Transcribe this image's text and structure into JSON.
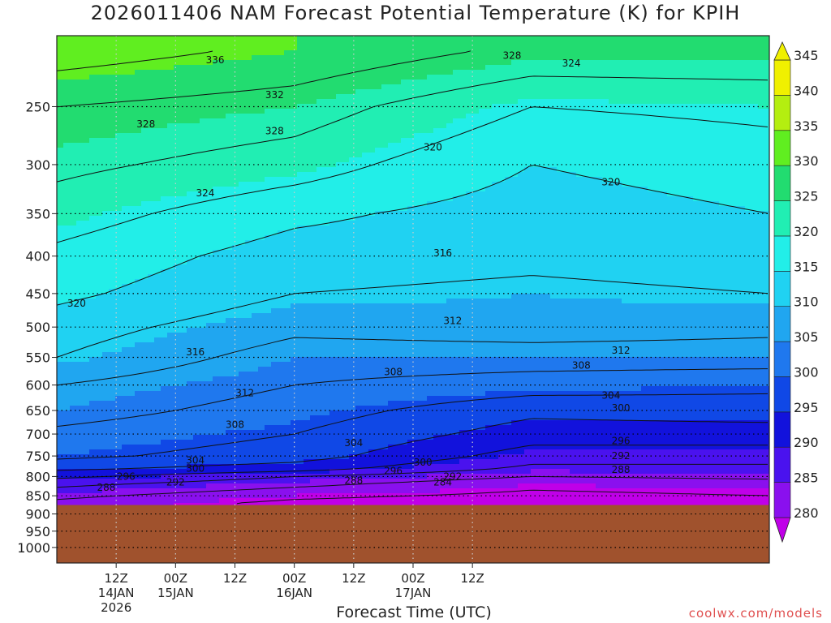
{
  "chart_data": {
    "type": "heatmap",
    "title": "2026011406 NAM Forecast Potential Temperature (K) for KPIH",
    "xlabel": "Forecast Time (UTC)",
    "ylabel": "",
    "credit": "coolwx.com/models",
    "y_scale": "log",
    "y_inverted": true,
    "ylim": [
      1050,
      200
    ],
    "y_ticks": [
      250,
      300,
      350,
      400,
      450,
      500,
      550,
      600,
      650,
      700,
      750,
      800,
      850,
      900,
      950,
      1000
    ],
    "xlim_hours": [
      6,
      78
    ],
    "x_ticks": [
      {
        "hour": 12,
        "lines": [
          "12Z",
          "14JAN",
          "2026"
        ]
      },
      {
        "hour": 18,
        "lines": [
          "00Z",
          "15JAN"
        ]
      },
      {
        "hour": 24,
        "lines": [
          "12Z"
        ]
      },
      {
        "hour": 30,
        "lines": [
          "00Z",
          "16JAN"
        ]
      },
      {
        "hour": 36,
        "lines": [
          "12Z"
        ]
      },
      {
        "hour": 42,
        "lines": [
          "00Z",
          "17JAN"
        ]
      },
      {
        "hour": 48,
        "lines": [
          "12Z"
        ]
      }
    ],
    "grid": true,
    "terrain_pressure": 875,
    "terrain_color": "#a0522d",
    "colorbar": {
      "levels": [
        280,
        285,
        290,
        295,
        300,
        305,
        310,
        315,
        320,
        325,
        330,
        335,
        340,
        345
      ],
      "colors": [
        "#c000e8",
        "#8a10ee",
        "#4a12ee",
        "#1212dc",
        "#1048e6",
        "#1f78ee",
        "#20a6f0",
        "#20d2f2",
        "#22eee8",
        "#21eeb3",
        "#22dc70",
        "#60ee20",
        "#b4ee10",
        "#f0f000"
      ]
    },
    "times": [
      6,
      30,
      54,
      78
    ],
    "pressures": [
      210,
      250,
      300,
      350,
      400,
      450,
      500,
      550,
      600,
      650,
      700,
      750,
      780,
      800,
      820,
      850,
      870
    ],
    "theta": [
      [
        338,
        335,
        331,
        331
      ],
      [
        332,
        330,
        324,
        325
      ],
      [
        329,
        326,
        320,
        322
      ],
      [
        326,
        321,
        318,
        320
      ],
      [
        323,
        318,
        317,
        318
      ],
      [
        321,
        316,
        315,
        316
      ],
      [
        318,
        313,
        314,
        313
      ],
      [
        316,
        310,
        310,
        310
      ],
      [
        312,
        308,
        306,
        305
      ],
      [
        310,
        306,
        301,
        302
      ],
      [
        307,
        304,
        298,
        298
      ],
      [
        305,
        302,
        294,
        294
      ],
      [
        301,
        298,
        291,
        291
      ],
      [
        297,
        292,
        288,
        289
      ],
      [
        293,
        289,
        285,
        286
      ],
      [
        289,
        285,
        283,
        284
      ],
      [
        287,
        283,
        281,
        282
      ]
    ],
    "contour_labels": [
      {
        "text": "336",
        "hour": 22,
        "p": 216
      },
      {
        "text": "332",
        "hour": 28,
        "p": 241
      },
      {
        "text": "328",
        "hour": 15,
        "p": 264
      },
      {
        "text": "328",
        "hour": 28,
        "p": 270
      },
      {
        "text": "328",
        "hour": 52,
        "p": 213
      },
      {
        "text": "324",
        "hour": 58,
        "p": 218
      },
      {
        "text": "324",
        "hour": 21,
        "p": 328
      },
      {
        "text": "320",
        "hour": 44,
        "p": 284
      },
      {
        "text": "320",
        "hour": 62,
        "p": 317
      },
      {
        "text": "320",
        "hour": 8,
        "p": 464
      },
      {
        "text": "316",
        "hour": 45,
        "p": 396
      },
      {
        "text": "316",
        "hour": 20,
        "p": 541
      },
      {
        "text": "312",
        "hour": 46,
        "p": 490
      },
      {
        "text": "312",
        "hour": 63,
        "p": 538
      },
      {
        "text": "312",
        "hour": 25,
        "p": 615
      },
      {
        "text": "308",
        "hour": 40,
        "p": 576
      },
      {
        "text": "308",
        "hour": 59,
        "p": 564
      },
      {
        "text": "308",
        "hour": 24,
        "p": 680
      },
      {
        "text": "304",
        "hour": 62,
        "p": 620
      },
      {
        "text": "304",
        "hour": 36,
        "p": 720
      },
      {
        "text": "304",
        "hour": 20,
        "p": 760
      },
      {
        "text": "300",
        "hour": 63,
        "p": 645
      },
      {
        "text": "300",
        "hour": 20,
        "p": 780
      },
      {
        "text": "300",
        "hour": 43,
        "p": 765
      },
      {
        "text": "296",
        "hour": 63,
        "p": 715
      },
      {
        "text": "296",
        "hour": 13,
        "p": 800
      },
      {
        "text": "296",
        "hour": 40,
        "p": 786
      },
      {
        "text": "292",
        "hour": 63,
        "p": 750
      },
      {
        "text": "292",
        "hour": 18,
        "p": 815
      },
      {
        "text": "292",
        "hour": 46,
        "p": 800
      },
      {
        "text": "288",
        "hour": 63,
        "p": 783
      },
      {
        "text": "288",
        "hour": 11,
        "p": 828
      },
      {
        "text": "288",
        "hour": 36,
        "p": 810
      },
      {
        "text": "284",
        "hour": 45,
        "p": 815
      }
    ]
  }
}
